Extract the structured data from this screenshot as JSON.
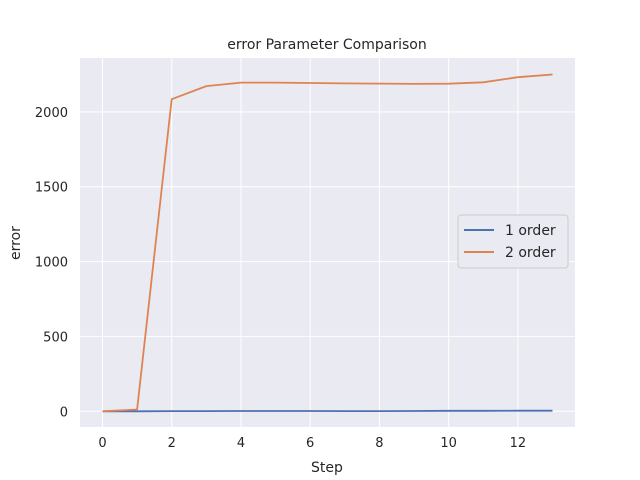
{
  "chart_data": {
    "type": "line",
    "title": "error Parameter Comparison",
    "xlabel": "Step",
    "ylabel": "error",
    "xlim": [
      -0.65,
      13.65
    ],
    "ylim": [
      -105,
      2360
    ],
    "xticks": [
      0,
      2,
      4,
      6,
      8,
      10,
      12
    ],
    "yticks": [
      0,
      500,
      1000,
      1500,
      2000
    ],
    "grid": true,
    "legend_position": "center-right",
    "x": [
      0,
      1,
      2,
      3,
      4,
      5,
      6,
      7,
      8,
      9,
      10,
      11,
      12,
      13
    ],
    "series": [
      {
        "name": "1 order",
        "color": "#4c72b0",
        "values": [
          0,
          0,
          1,
          1,
          2,
          2,
          2,
          1,
          1,
          2,
          3,
          3,
          4,
          4
        ]
      },
      {
        "name": "2 order",
        "color": "#dd8452",
        "values": [
          0,
          12,
          2085,
          2172,
          2196,
          2196,
          2193,
          2190,
          2189,
          2187,
          2188,
          2198,
          2232,
          2250
        ]
      }
    ]
  }
}
